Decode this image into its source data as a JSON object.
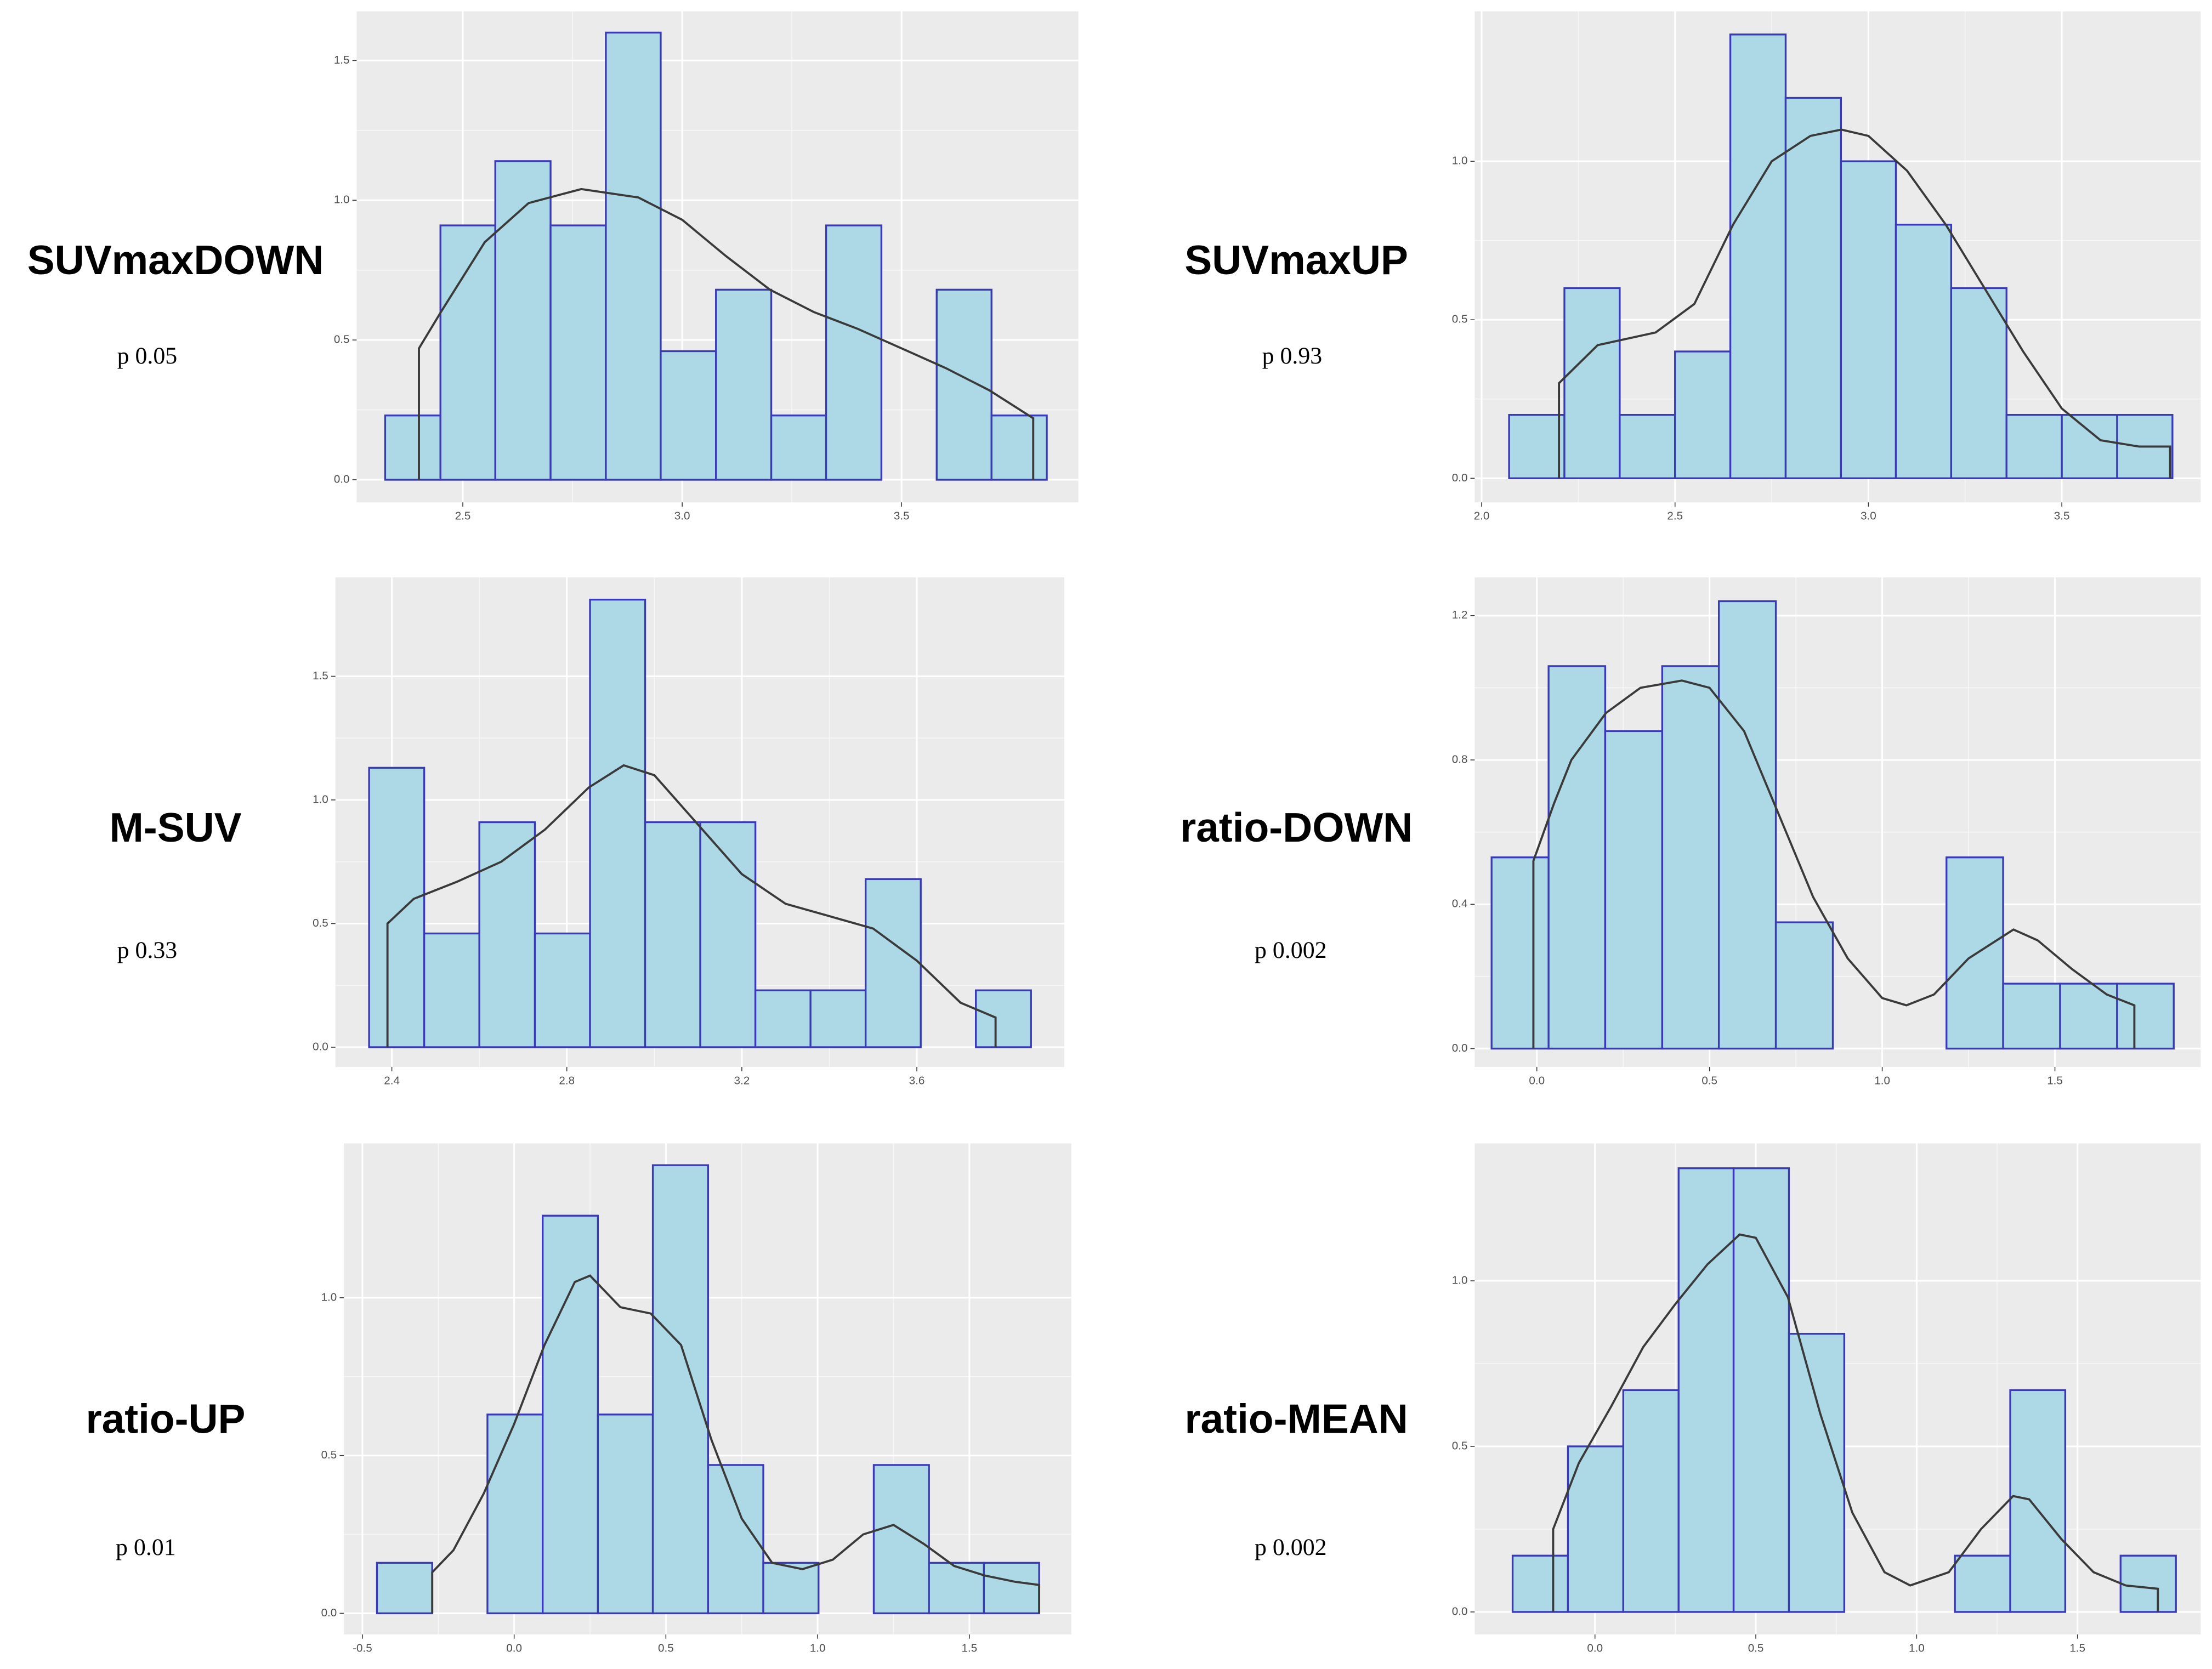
{
  "chart_data": [
    {
      "type": "histogram",
      "title": "SUVmaxDOWN",
      "annotation": "p 0.05",
      "bins": [
        2.323,
        2.449,
        2.574,
        2.7,
        2.826,
        2.951,
        3.077,
        3.203,
        3.328,
        3.454,
        3.58,
        3.705,
        3.831
      ],
      "values": [
        0.23,
        0.91,
        1.14,
        0.91,
        1.6,
        0.46,
        0.68,
        0.23,
        0.91,
        0,
        0.68,
        0.23
      ],
      "density": {
        "x": [
          2.4,
          2.4,
          2.45,
          2.55,
          2.65,
          2.77,
          2.9,
          3.0,
          3.1,
          3.2,
          3.3,
          3.4,
          3.5,
          3.6,
          3.7,
          3.8,
          3.8
        ],
        "y": [
          0,
          0.47,
          0.6,
          0.85,
          0.99,
          1.04,
          1.01,
          0.93,
          0.8,
          0.68,
          0.6,
          0.54,
          0.47,
          0.4,
          0.32,
          0.22,
          0
        ]
      },
      "xlim": [
        2.258,
        3.903
      ],
      "ylim": [
        -0.081,
        1.676
      ],
      "xticks": [
        2.5,
        {
          "value": 3.0,
          "label": "3.0"
        },
        3.5
      ],
      "yticks": [
        {
          "value": 0,
          "label": "0.0"
        },
        0.5,
        {
          "value": 1.0,
          "label": "1.0"
        },
        1.5
      ],
      "grid": true,
      "fill": "#add8e6",
      "edge_color": "#3a3ab8",
      "line_color": "#3a3a3a",
      "background": "#ebebeb"
    },
    {
      "type": "histogram",
      "title": "SUVmaxUP",
      "annotation": "p 0.93",
      "bins": [
        2.071,
        2.214,
        2.357,
        2.5,
        2.643,
        2.786,
        2.929,
        3.071,
        3.214,
        3.357,
        3.5,
        3.643,
        3.786
      ],
      "values": [
        0.2,
        0.6,
        0.2,
        0.4,
        1.4,
        1.2,
        1.0,
        0.8,
        0.6,
        0.2,
        0.2,
        0.2
      ],
      "density": {
        "x": [
          2.2,
          2.2,
          2.3,
          2.45,
          2.55,
          2.65,
          2.75,
          2.85,
          2.93,
          3.0,
          3.1,
          3.2,
          3.3,
          3.4,
          3.5,
          3.6,
          3.7,
          3.78,
          3.78
        ],
        "y": [
          0,
          0.3,
          0.42,
          0.46,
          0.55,
          0.8,
          1.0,
          1.08,
          1.1,
          1.08,
          0.97,
          0.8,
          0.6,
          0.4,
          0.22,
          0.12,
          0.1,
          0.1,
          0
        ]
      },
      "xlim": [
        1.982,
        3.859
      ],
      "ylim": [
        -0.076,
        1.473
      ],
      "xticks": [
        {
          "value": 2.0,
          "label": "2.0"
        },
        2.5,
        {
          "value": 3.0,
          "label": "3.0"
        },
        3.5
      ],
      "yticks": [
        {
          "value": 0,
          "label": "0.0"
        },
        0.5,
        {
          "value": 1.0,
          "label": "1.0"
        }
      ],
      "grid": true,
      "fill": "#add8e6",
      "edge_color": "#3a3ab8",
      "line_color": "#3a3a3a",
      "background": "#ebebeb"
    },
    {
      "type": "histogram",
      "title": "M-SUV",
      "annotation": "p 0.33",
      "bins": [
        2.348,
        2.474,
        2.6,
        2.727,
        2.853,
        2.979,
        3.105,
        3.231,
        3.357,
        3.483,
        3.609,
        3.735,
        3.861
      ],
      "values": [
        1.13,
        0.46,
        0.91,
        0.46,
        1.81,
        0.91,
        0.91,
        0.23,
        0.23,
        0.68,
        0,
        0.23
      ],
      "density": {
        "x": [
          2.39,
          2.39,
          2.45,
          2.55,
          2.65,
          2.75,
          2.85,
          2.93,
          3.0,
          3.1,
          3.2,
          3.3,
          3.4,
          3.5,
          3.6,
          3.7,
          3.78,
          3.78
        ],
        "y": [
          0,
          0.5,
          0.6,
          0.67,
          0.75,
          0.88,
          1.05,
          1.14,
          1.1,
          0.9,
          0.7,
          0.58,
          0.53,
          0.48,
          0.35,
          0.18,
          0.12,
          0
        ]
      },
      "xlim": [
        2.271,
        3.937
      ],
      "ylim": [
        -0.08,
        1.9
      ],
      "xticks": [
        2.4,
        2.8,
        3.2,
        3.6
      ],
      "yticks": [
        {
          "value": 0,
          "label": "0.0"
        },
        0.5,
        {
          "value": 1.0,
          "label": "1.0"
        },
        1.5
      ],
      "grid": true,
      "fill": "#add8e6",
      "edge_color": "#3a3ab8",
      "line_color": "#3a3a3a",
      "background": "#ebebeb"
    },
    {
      "type": "histogram",
      "title": "ratio-DOWN",
      "annotation": "p 0.002",
      "bins": [
        -0.131,
        0.034,
        0.198,
        0.363,
        0.527,
        0.692,
        0.857,
        1.021,
        1.186,
        1.35,
        1.515,
        1.68,
        1.844
      ],
      "values": [
        0.53,
        1.06,
        0.88,
        1.06,
        1.24,
        0.35,
        0,
        0,
        0.53,
        0.18,
        0.18,
        0.18
      ],
      "density": {
        "x": [
          -0.01,
          -0.01,
          0.05,
          0.1,
          0.2,
          0.3,
          0.42,
          0.5,
          0.6,
          0.7,
          0.8,
          0.9,
          1.0,
          1.07,
          1.15,
          1.25,
          1.38,
          1.45,
          1.55,
          1.65,
          1.73,
          1.73
        ],
        "y": [
          0,
          0.52,
          0.68,
          0.8,
          0.93,
          1.0,
          1.02,
          1.0,
          0.88,
          0.65,
          0.42,
          0.25,
          0.14,
          0.12,
          0.15,
          0.25,
          0.33,
          0.3,
          0.22,
          0.15,
          0.12,
          0
        ]
      },
      "xlim": [
        -0.18,
        1.922
      ],
      "ylim": [
        -0.051,
        1.306
      ],
      "xticks": [
        {
          "value": 0,
          "label": "0.0"
        },
        0.5,
        {
          "value": 1.0,
          "label": "1.0"
        },
        1.5
      ],
      "yticks": [
        {
          "value": 0,
          "label": "0.0"
        },
        0.4,
        0.8,
        1.2
      ],
      "grid": true,
      "fill": "#add8e6",
      "edge_color": "#3a3ab8",
      "line_color": "#3a3a3a",
      "background": "#ebebeb"
    },
    {
      "type": "histogram",
      "title": "ratio-UP",
      "annotation": "p 0.01",
      "bins": [
        -0.452,
        -0.27,
        -0.088,
        0.094,
        0.276,
        0.457,
        0.639,
        0.821,
        1.003,
        1.185,
        1.367,
        1.548,
        1.73
      ],
      "values": [
        0.16,
        0,
        0.63,
        1.26,
        0.63,
        1.42,
        0.47,
        0.16,
        0,
        0.47,
        0.16,
        0.16
      ],
      "density": {
        "x": [
          -0.27,
          -0.27,
          -0.2,
          -0.1,
          0.0,
          0.1,
          0.2,
          0.25,
          0.35,
          0.45,
          0.55,
          0.65,
          0.75,
          0.85,
          0.95,
          1.05,
          1.15,
          1.25,
          1.35,
          1.45,
          1.55,
          1.65,
          1.73,
          1.73
        ],
        "y": [
          0,
          0.13,
          0.2,
          0.38,
          0.6,
          0.85,
          1.05,
          1.07,
          0.97,
          0.95,
          0.85,
          0.55,
          0.3,
          0.16,
          0.14,
          0.17,
          0.25,
          0.28,
          0.22,
          0.15,
          0.12,
          0.1,
          0.09,
          0
        ]
      },
      "xlim": [
        -0.561,
        1.836
      ],
      "ylim": [
        -0.067,
        1.489
      ],
      "xticks": [
        -0.5,
        {
          "value": 0,
          "label": "0.0"
        },
        0.5,
        {
          "value": 1.0,
          "label": "1.0"
        },
        1.5
      ],
      "yticks": [
        {
          "value": 0,
          "label": "0.0"
        },
        0.5,
        {
          "value": 1.0,
          "label": "1.0"
        }
      ],
      "grid": true,
      "fill": "#add8e6",
      "edge_color": "#3a3ab8",
      "line_color": "#3a3a3a",
      "background": "#ebebeb"
    },
    {
      "type": "histogram",
      "title": "ratio-MEAN",
      "annotation": "p 0.002",
      "bins": [
        -0.256,
        -0.084,
        0.088,
        0.26,
        0.431,
        0.603,
        0.775,
        0.947,
        1.119,
        1.291,
        1.462,
        1.634,
        1.806
      ],
      "values": [
        0.17,
        0.5,
        0.67,
        1.34,
        1.34,
        0.84,
        0,
        0,
        0.17,
        0.67,
        0,
        0.17
      ],
      "density": {
        "x": [
          -0.13,
          -0.13,
          -0.05,
          0.05,
          0.15,
          0.25,
          0.35,
          0.45,
          0.5,
          0.6,
          0.7,
          0.8,
          0.9,
          0.98,
          1.1,
          1.2,
          1.3,
          1.35,
          1.45,
          1.55,
          1.65,
          1.75,
          1.75
        ],
        "y": [
          0,
          0.25,
          0.45,
          0.62,
          0.8,
          0.93,
          1.05,
          1.14,
          1.13,
          0.95,
          0.6,
          0.3,
          0.12,
          0.08,
          0.12,
          0.25,
          0.35,
          0.34,
          0.22,
          0.12,
          0.08,
          0.07,
          0
        ]
      },
      "xlim": [
        -0.374,
        1.883
      ],
      "ylim": [
        -0.068,
        1.415
      ],
      "xticks": [
        {
          "value": 0,
          "label": "0.0"
        },
        0.5,
        {
          "value": 1.0,
          "label": "1.0"
        },
        1.5
      ],
      "yticks": [
        {
          "value": 0,
          "label": "0.0"
        },
        0.5,
        {
          "value": 1.0,
          "label": "1.0"
        }
      ],
      "grid": true,
      "fill": "#add8e6",
      "edge_color": "#3a3ab8",
      "line_color": "#3a3a3a",
      "background": "#ebebeb"
    }
  ]
}
